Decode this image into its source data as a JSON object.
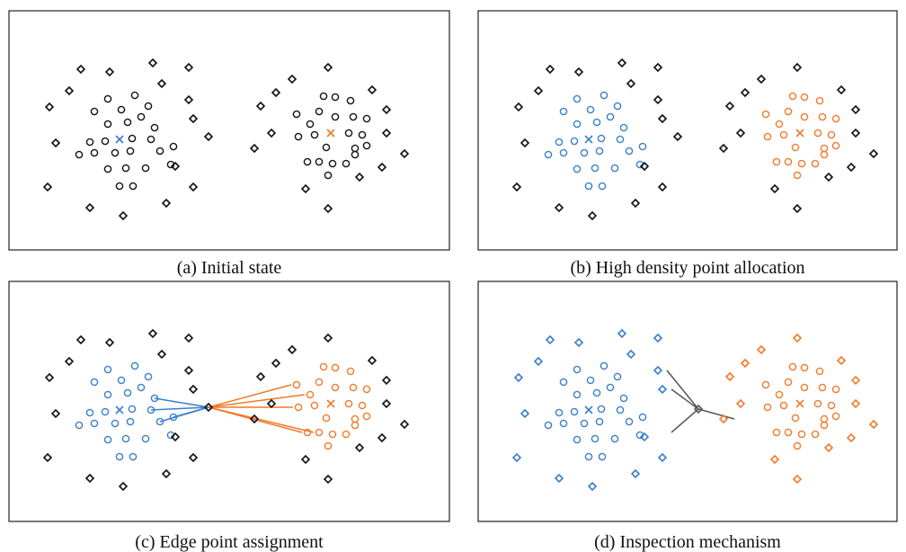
{
  "panels": [
    {
      "caption": "(a) Initial state"
    },
    {
      "caption": "(b) High density point allocation"
    },
    {
      "caption": "(c) Edge point assignment"
    },
    {
      "caption": "(d) Inspection mechanism"
    }
  ]
}
